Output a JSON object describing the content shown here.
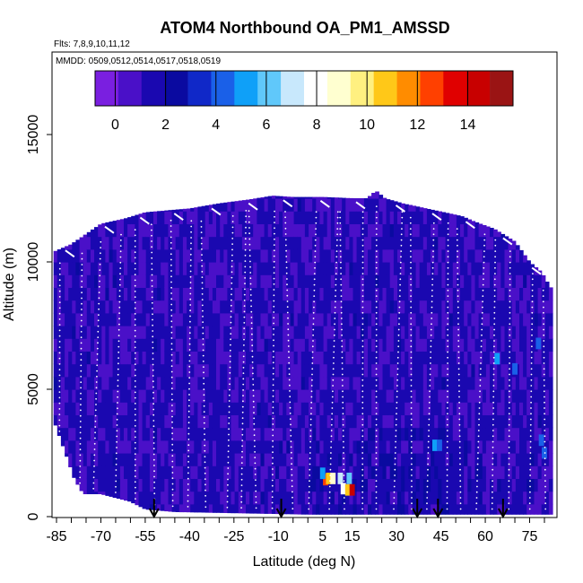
{
  "chart_data": {
    "type": "heatmap",
    "title": "ATOM4 Northbound OA_PM1_AMSSD",
    "flights_label": "Flts: 7,8,9,10,11,12",
    "dates_label": "MMDD: 0509,0512,0514,0517,0518,0519",
    "xlabel": "Latitude (deg N)",
    "ylabel": "Altitude (m)",
    "xlim": [
      -88,
      87
    ],
    "ylim": [
      0,
      17500
    ],
    "x_ticks": [
      -85,
      -70,
      -55,
      -40,
      -25,
      -10,
      5,
      15,
      30,
      45,
      60,
      75
    ],
    "y_ticks": [
      0,
      5000,
      10000,
      15000
    ],
    "colorbar": {
      "range": [
        -0.8,
        15.8
      ],
      "ticks": [
        0,
        2,
        4,
        6,
        8,
        10,
        12,
        14
      ],
      "colors": [
        "#7a1fe0",
        "#4a10c8",
        "#1a08b0",
        "#0a0aa0",
        "#1028c8",
        "#1a60e8",
        "#0fa0f8",
        "#60c8fa",
        "#c8e8fc",
        "#ffffff",
        "#ffffd0",
        "#fff080",
        "#ffc818",
        "#ff8c00",
        "#ff4000",
        "#e00000",
        "#c80000",
        "#9a1414"
      ]
    },
    "arrows_lat": [
      -52,
      -9,
      37,
      44,
      66
    ],
    "top_boundary": [
      [
        -86,
        10400
      ],
      [
        -80,
        10700
      ],
      [
        -75,
        11100
      ],
      [
        -70,
        11500
      ],
      [
        -62,
        11700
      ],
      [
        -55,
        11950
      ],
      [
        -40,
        12100
      ],
      [
        -30,
        12300
      ],
      [
        -20,
        12450
      ],
      [
        -12,
        12600
      ],
      [
        -5,
        12550
      ],
      [
        5,
        12550
      ],
      [
        15,
        12500
      ],
      [
        20,
        12500
      ],
      [
        23,
        12800
      ],
      [
        26,
        12500
      ],
      [
        32,
        12300
      ],
      [
        40,
        12100
      ],
      [
        48,
        11900
      ],
      [
        52,
        11800
      ],
      [
        56,
        11600
      ],
      [
        63,
        11300
      ],
      [
        70,
        10800
      ],
      [
        75,
        10000
      ],
      [
        79,
        9600
      ],
      [
        82,
        9000
      ]
    ],
    "bottom_boundary": [
      [
        -86,
        3800
      ],
      [
        -82,
        2500
      ],
      [
        -79,
        1500
      ],
      [
        -76,
        900
      ],
      [
        -70,
        900
      ],
      [
        -60,
        600
      ],
      [
        -55,
        300
      ],
      [
        -45,
        200
      ],
      [
        0,
        100
      ],
      [
        60,
        100
      ],
      [
        82,
        100
      ]
    ],
    "plumes": [
      {
        "lat": 6,
        "alt": 1450,
        "value": 13
      },
      {
        "lat": 7,
        "alt": 1500,
        "value": 11
      },
      {
        "lat": 8.5,
        "alt": 1500,
        "value": 9
      },
      {
        "lat": 11,
        "alt": 1500,
        "value": 7
      },
      {
        "lat": 14,
        "alt": 1500,
        "value": 6
      },
      {
        "lat": 12,
        "alt": 1100,
        "value": 8
      },
      {
        "lat": 13.5,
        "alt": 1050,
        "value": 11
      },
      {
        "lat": 15,
        "alt": 1050,
        "value": 14
      },
      {
        "lat": 5,
        "alt": 1700,
        "value": 5
      },
      {
        "lat": 43,
        "alt": 2800,
        "value": 5
      },
      {
        "lat": 44.5,
        "alt": 2800,
        "value": 4
      },
      {
        "lat": 64,
        "alt": 6200,
        "value": 5
      },
      {
        "lat": 70,
        "alt": 5800,
        "value": 4.5
      },
      {
        "lat": 78,
        "alt": 6800,
        "value": 4
      },
      {
        "lat": 79,
        "alt": 3000,
        "value": 4.5
      },
      {
        "lat": 80,
        "alt": 2500,
        "value": 4
      }
    ]
  }
}
